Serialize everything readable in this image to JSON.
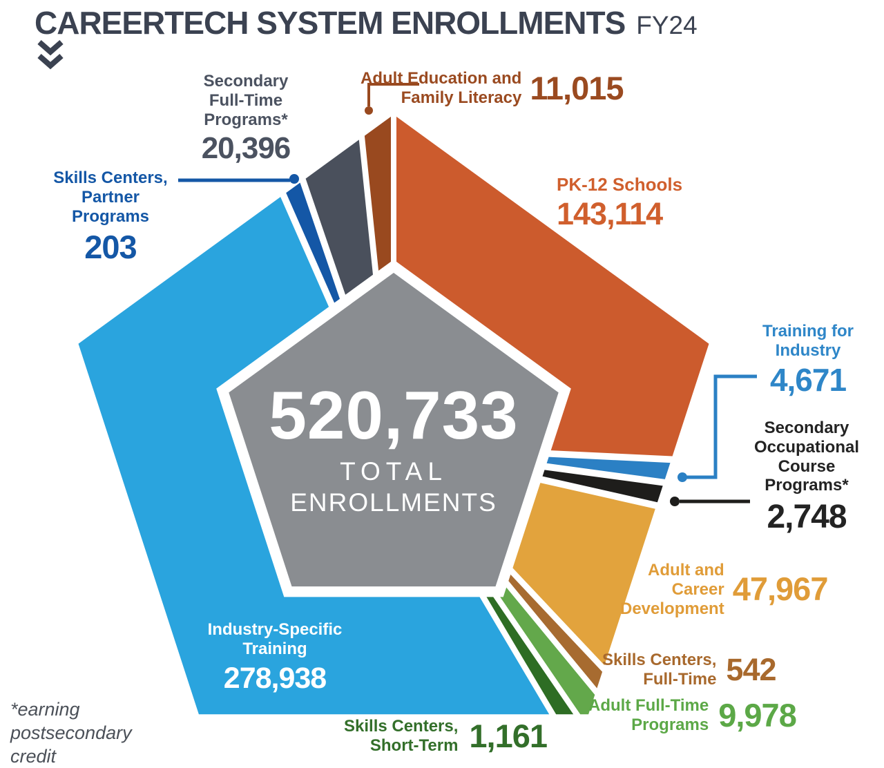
{
  "title": {
    "main": "CAREERTECH SYSTEM ENROLLMENTS",
    "suffix": "FY24"
  },
  "center": {
    "total": "520,733",
    "sub1": "TOTAL",
    "sub2": "ENROLLMENTS"
  },
  "footnote": {
    "lines": [
      "*earning",
      "postsecondary",
      "credit"
    ],
    "color": "#4b5058"
  },
  "colors": {
    "background": "#ffffff",
    "title_text": "#3b4251",
    "center_fill": "#8a8d91",
    "center_text": "#ffffff"
  },
  "chart_data": {
    "type": "pie",
    "shape": "pentagon-donut",
    "title": "CAREERTECH SYSTEM ENROLLMENTS FY24",
    "total": 520733,
    "total_label": "520,733 TOTAL ENROLLMENTS",
    "footnote": "*earning postsecondary credit",
    "legend_position": "labels-around-chart",
    "segments": [
      {
        "id": "pk12",
        "label": "PK-12 Schools",
        "value": 143114,
        "color": "#cc5b2d"
      },
      {
        "id": "tfi",
        "label": "Training for Industry",
        "value": 4671,
        "color": "#2b80c4"
      },
      {
        "id": "socp",
        "label": "Secondary Occupational Course Programs*",
        "value": 2748,
        "color": "#1e1d1b"
      },
      {
        "id": "acd",
        "label": "Adult and Career Development",
        "value": 47967,
        "color": "#e2a33d"
      },
      {
        "id": "scft",
        "label": "Skills Centers, Full-Time",
        "value": 542,
        "color": "#a76b30"
      },
      {
        "id": "aftp",
        "label": "Adult Full-Time Programs",
        "value": 9978,
        "color": "#63a84b"
      },
      {
        "id": "scst",
        "label": "Skills Centers, Short-Term",
        "value": 1161,
        "color": "#2e6d24"
      },
      {
        "id": "ist",
        "label": "Industry-Specific Training",
        "value": 278938,
        "color": "#2aa4de"
      },
      {
        "id": "scpp",
        "label": "Skills Centers, Partner Programs",
        "value": 203,
        "color": "#1457a6"
      },
      {
        "id": "sftp",
        "label": "Secondary Full-Time Programs*",
        "value": 20396,
        "color": "#4a505c"
      },
      {
        "id": "aefl",
        "label": "Adult Education and Family Literacy",
        "value": 11015,
        "color": "#99491f"
      }
    ]
  },
  "callouts": [
    {
      "id": "aefl",
      "lines": [
        "Adult Education and",
        "Family Literacy"
      ],
      "value": "11,015",
      "color": "#9a4a20"
    },
    {
      "id": "pk12",
      "lines": [
        "PK-12 Schools"
      ],
      "value": "143,114",
      "color": "#d05f2d"
    },
    {
      "id": "tfi",
      "lines": [
        "Training for",
        "Industry"
      ],
      "value": "4,671",
      "color": "#2e86c8"
    },
    {
      "id": "socp",
      "lines": [
        "Secondary",
        "Occupational",
        "Course",
        "Programs*"
      ],
      "value": "2,748",
      "color": "#232323"
    },
    {
      "id": "acd",
      "lines": [
        "Adult and",
        "Career",
        "Development"
      ],
      "value": "47,967",
      "color": "#e09c38"
    },
    {
      "id": "scft",
      "lines": [
        "Skills Centers,",
        "Full-Time"
      ],
      "value": "542",
      "color": "#a8692d"
    },
    {
      "id": "aftp",
      "lines": [
        "Adult Full-Time",
        "Programs"
      ],
      "value": "9,978",
      "color": "#5ca847"
    },
    {
      "id": "scst",
      "lines": [
        "Skills Centers,",
        "Short-Term"
      ],
      "value": "1,161",
      "color": "#336f2a"
    },
    {
      "id": "ist",
      "lines": [
        "Industry-Specific",
        "Training"
      ],
      "value": "278,938",
      "color": "#ffffff"
    },
    {
      "id": "scpp",
      "lines": [
        "Skills Centers,",
        "Partner",
        "Programs"
      ],
      "value": "203",
      "color": "#1457a6"
    },
    {
      "id": "sftp",
      "lines": [
        "Secondary",
        "Full-Time",
        "Programs*"
      ],
      "value": "20,396",
      "color": "#4b5260"
    }
  ]
}
